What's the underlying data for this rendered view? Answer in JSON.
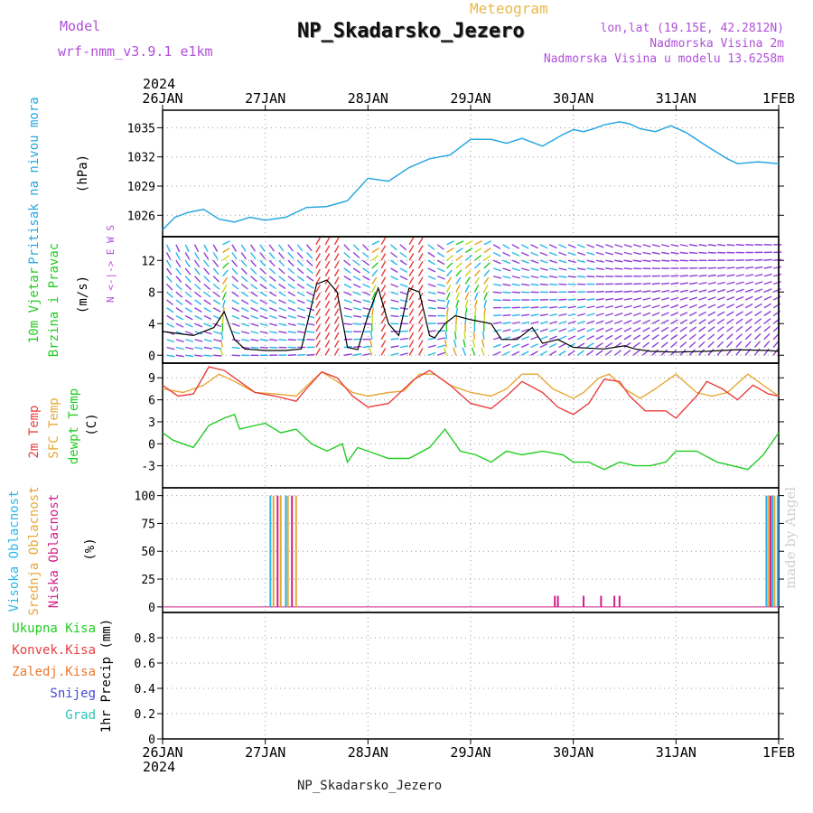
{
  "header": {
    "model_label": "Model",
    "model_name": "wrf-nmm_v3.9.1 e1km",
    "meteogram_label": "Meteogram",
    "station_title": "NP_Skadarsko_Jezero",
    "lonlat": "lon,lat (19.15E, 42.2812N)",
    "elevation": "Nadmorska Visina 2m",
    "model_elevation": "Nadmorska Visina u modelu 13.6258m",
    "footer_station": "NP_Skadarsko_Jezero",
    "watermark": "made by Angel"
  },
  "colors": {
    "pressure": "#29a8e0",
    "temp2m": "#e84040",
    "sfc_temp": "#e8a838",
    "dewpt": "#22cc22",
    "cloud_high": "#29b8e8",
    "cloud_mid": "#e8a838",
    "cloud_low": "#d0208a",
    "model_purple": "#b050d8",
    "meteogram_orange": "#e8b84a",
    "total_precip": "#22cc22",
    "conv_precip": "#e84040",
    "frz_precip": "#e87a30",
    "snow": "#4848d8",
    "hail": "#28c8b8"
  },
  "time_axis": {
    "year": "2024",
    "labels": [
      "26JAN",
      "27JAN",
      "28JAN",
      "29JAN",
      "30JAN",
      "31JAN",
      "1FEB"
    ]
  },
  "chart_data": [
    {
      "type": "line",
      "panel": "pressure",
      "ylabel_lines": [
        "Pritisak na nivou mora",
        "(hPa)"
      ],
      "yticks": [
        1026,
        1029,
        1032,
        1035
      ],
      "ylim": [
        1023.8,
        1036.8
      ],
      "grid": true,
      "series": [
        {
          "x_days": [
            0,
            0.12,
            0.25,
            0.4,
            0.55,
            0.7,
            0.85,
            1.0,
            1.2,
            1.4,
            1.6,
            1.8,
            2.0,
            2.2,
            2.4,
            2.6,
            2.8,
            3.0,
            3.2,
            3.35,
            3.5,
            3.7,
            3.9,
            4.0,
            4.1,
            4.2,
            4.3,
            4.45,
            4.55,
            4.65,
            4.8,
            4.95,
            5.1,
            5.3,
            5.5,
            5.6,
            5.8,
            6.0
          ],
          "values": [
            1024.5,
            1025.8,
            1026.3,
            1026.6,
            1025.6,
            1025.3,
            1025.8,
            1025.5,
            1025.8,
            1026.8,
            1026.9,
            1027.5,
            1029.8,
            1029.5,
            1030.9,
            1031.8,
            1032.2,
            1033.8,
            1033.8,
            1033.4,
            1033.9,
            1033.1,
            1034.3,
            1034.8,
            1034.6,
            1034.9,
            1035.3,
            1035.6,
            1035.4,
            1034.9,
            1034.6,
            1035.2,
            1034.5,
            1033.1,
            1031.8,
            1031.3,
            1031.5,
            1031.3
          ]
        }
      ]
    },
    {
      "type": "line",
      "panel": "wind",
      "ylabel_lines": [
        "10m Vjetar",
        "Brzina i Pravac",
        "(m/s)"
      ],
      "compass": "N <-|-> E W S",
      "yticks": [
        0,
        4,
        8,
        12
      ],
      "ylim": [
        -1,
        15
      ],
      "grid": true,
      "series": [
        {
          "x_days": [
            0,
            0.3,
            0.5,
            0.6,
            0.7,
            0.8,
            1.0,
            1.2,
            1.35,
            1.5,
            1.6,
            1.7,
            1.8,
            1.9,
            2.0,
            2.1,
            2.2,
            2.3,
            2.4,
            2.5,
            2.6,
            2.65,
            2.75,
            2.85,
            3.0,
            3.2,
            3.3,
            3.45,
            3.6,
            3.7,
            3.85,
            4.0,
            4.3,
            4.5,
            4.6,
            4.75,
            5.0,
            5.3,
            5.6,
            5.9,
            6.0
          ],
          "values": [
            3.0,
            2.5,
            3.5,
            5.5,
            2.0,
            0.8,
            0.6,
            0.6,
            0.8,
            9.0,
            9.5,
            8.0,
            1.0,
            0.7,
            5.0,
            8.5,
            4.0,
            2.5,
            8.5,
            8.0,
            2.5,
            2.2,
            4.0,
            5.0,
            4.5,
            4.0,
            2.0,
            2.0,
            3.5,
            1.5,
            2.0,
            1.0,
            0.8,
            1.2,
            0.8,
            0.5,
            0.4,
            0.5,
            0.7,
            0.6,
            0.5
          ]
        }
      ],
      "rows_speeds": [
        0,
        1,
        2,
        3,
        4,
        5,
        6,
        7,
        8,
        9,
        10,
        11,
        12,
        13,
        14
      ]
    },
    {
      "type": "line",
      "panel": "temperature",
      "ylabel_lines": [
        "2m Temp",
        "SFC Temp",
        "dewpt Temp",
        "(C)"
      ],
      "yticks": [
        -3,
        0,
        3,
        6,
        9
      ],
      "ylim": [
        -6,
        11
      ],
      "grid": true,
      "series": [
        {
          "name": "2m Temp",
          "x_days": [
            0,
            0.15,
            0.3,
            0.45,
            0.6,
            0.75,
            0.9,
            1.1,
            1.3,
            1.4,
            1.55,
            1.7,
            1.85,
            2.0,
            2.2,
            2.45,
            2.6,
            2.8,
            3.0,
            3.2,
            3.35,
            3.5,
            3.7,
            3.85,
            4.0,
            4.15,
            4.3,
            4.45,
            4.55,
            4.7,
            4.9,
            5.0,
            5.2,
            5.3,
            5.45,
            5.6,
            5.75,
            5.9,
            6.0
          ],
          "values": [
            8.0,
            6.5,
            6.8,
            10.5,
            10.0,
            8.5,
            7.0,
            6.5,
            5.8,
            7.5,
            9.8,
            9.0,
            6.5,
            5.0,
            5.5,
            8.8,
            10.0,
            8.0,
            5.5,
            4.8,
            6.5,
            8.5,
            7.0,
            5.0,
            4.0,
            5.5,
            8.8,
            8.5,
            6.5,
            4.5,
            4.5,
            3.5,
            6.5,
            8.5,
            7.5,
            6.0,
            8.0,
            6.8,
            6.5
          ]
        },
        {
          "name": "SFC Temp",
          "x_days": [
            0,
            0.2,
            0.4,
            0.55,
            0.7,
            0.9,
            1.1,
            1.3,
            1.45,
            1.55,
            1.7,
            1.85,
            2.0,
            2.2,
            2.35,
            2.5,
            2.65,
            2.8,
            3.0,
            3.2,
            3.35,
            3.5,
            3.65,
            3.8,
            4.0,
            4.1,
            4.25,
            4.35,
            4.5,
            4.65,
            4.8,
            5.0,
            5.2,
            5.35,
            5.5,
            5.7,
            5.85,
            6.0
          ],
          "values": [
            7.5,
            7.0,
            8.0,
            9.5,
            8.5,
            7.0,
            6.8,
            6.5,
            8.5,
            9.8,
            8.5,
            7.0,
            6.5,
            7.0,
            7.2,
            9.5,
            9.5,
            8.0,
            7.0,
            6.5,
            7.5,
            9.5,
            9.5,
            7.5,
            6.2,
            7.0,
            9.0,
            9.5,
            7.5,
            6.2,
            7.5,
            9.5,
            7.0,
            6.5,
            7.0,
            9.5,
            8.0,
            6.5
          ]
        },
        {
          "name": "dewpt Temp",
          "x_days": [
            0,
            0.1,
            0.3,
            0.45,
            0.6,
            0.7,
            0.75,
            0.9,
            1.0,
            1.15,
            1.3,
            1.45,
            1.6,
            1.75,
            1.8,
            1.9,
            2.0,
            2.2,
            2.4,
            2.6,
            2.75,
            2.9,
            3.05,
            3.2,
            3.35,
            3.5,
            3.7,
            3.9,
            4.0,
            4.15,
            4.3,
            4.45,
            4.6,
            4.75,
            4.9,
            5.0,
            5.2,
            5.4,
            5.55,
            5.7,
            5.85,
            6.0
          ],
          "values": [
            1.5,
            0.5,
            -0.5,
            2.5,
            3.5,
            4.0,
            2.0,
            2.5,
            2.8,
            1.5,
            2.0,
            0.0,
            -1.0,
            0.0,
            -2.5,
            -0.5,
            -1.0,
            -2.0,
            -2.0,
            -0.5,
            2.0,
            -1.0,
            -1.5,
            -2.5,
            -1.0,
            -1.5,
            -1.0,
            -1.5,
            -2.5,
            -2.5,
            -3.5,
            -2.5,
            -3.0,
            -3.0,
            -2.5,
            -1.0,
            -1.0,
            -2.5,
            -3.0,
            -3.5,
            -1.5,
            1.5
          ]
        }
      ]
    },
    {
      "type": "bar",
      "panel": "clouds",
      "ylabel_lines": [
        "Visoka Oblacnost",
        "Srednja Oblacnost",
        "Niska Oblacnost",
        "(%)"
      ],
      "yticks": [
        0,
        25,
        50,
        75,
        100
      ],
      "ylim": [
        -5,
        107
      ],
      "grid": true,
      "series": [
        {
          "name": "Visoka Oblacnost",
          "x_days": [
            1.05,
            1.2,
            5.88,
            5.94,
            5.99
          ],
          "values": [
            100,
            100,
            100,
            100,
            100
          ]
        },
        {
          "name": "Srednja Oblacnost",
          "x_days": [
            1.08,
            1.15,
            1.22,
            1.3,
            5.9,
            5.96
          ],
          "values": [
            100,
            100,
            100,
            100,
            100,
            100
          ]
        },
        {
          "name": "Niska Oblacnost",
          "x_days": [
            1.12,
            1.26,
            3.82,
            3.85,
            4.1,
            4.27,
            4.4,
            4.45,
            5.92
          ],
          "values": [
            100,
            100,
            10,
            10,
            10,
            10,
            10,
            10,
            100
          ]
        }
      ]
    },
    {
      "type": "bar",
      "panel": "precip",
      "ylabel_lines": [
        "1hr Precip (mm)"
      ],
      "legend_items": [
        "Ukupna Kisa",
        "Konvek.Kisa",
        "Zaledj.Kisa",
        "Snijeg",
        "Grad"
      ],
      "yticks": [
        0,
        0.2,
        0.4,
        0.6,
        0.8
      ],
      "ylim": [
        0,
        1.0
      ],
      "grid": true,
      "series": []
    }
  ]
}
